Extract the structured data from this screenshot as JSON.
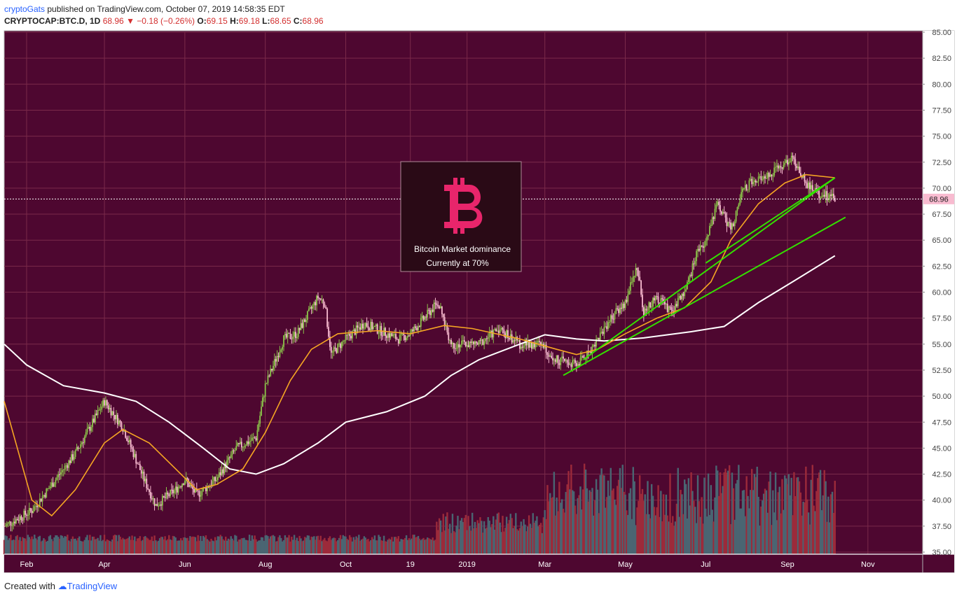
{
  "header": {
    "author": "cryptoGats",
    "published": "published on TradingView.com, October 07, 2019 14:58:35 EDT"
  },
  "ohlc": {
    "symbol": "CRYPTOCAP:BTC.D, 1D",
    "last": "68.96",
    "arrow": "▼",
    "change": "−0.18 (−0.26%)",
    "o_label": "O:",
    "o": "69.15",
    "h_label": "H:",
    "h": "69.18",
    "l_label": "L:",
    "l": "68.65",
    "c_label": "C:",
    "c": "68.96"
  },
  "footer": {
    "created": "Created with",
    "brand": "TradingView"
  },
  "badge": {
    "line1": "Bitcoin Market dominance",
    "line2": "Currently at 70%",
    "logo_color": "#e8256b"
  },
  "colors": {
    "background": "#4e0730",
    "grid": "#7a2a4a",
    "up": "#8bc34a",
    "down": "#f8bbd0",
    "ma_short": "#f5a623",
    "ma_long": "#ffffff",
    "trend": "#33e000",
    "vol_up": "#4a6572",
    "vol_down": "#9c2a3a"
  },
  "chart_data": {
    "type": "candlestick",
    "title": "",
    "xlabel": "",
    "ylabel": "",
    "ylim": [
      35.0,
      85.0
    ],
    "y_ticks": [
      "85.00",
      "82.50",
      "80.00",
      "77.50",
      "75.00",
      "72.50",
      "70.00",
      "67.50",
      "65.00",
      "62.50",
      "60.00",
      "57.50",
      "55.00",
      "52.50",
      "50.00",
      "47.50",
      "45.00",
      "42.50",
      "40.00",
      "37.50",
      "35.00"
    ],
    "x_ticks": [
      "Feb",
      "Apr",
      "Jun",
      "Aug",
      "Oct",
      "19",
      "2019",
      "Mar",
      "May",
      "Jul",
      "Sep",
      "Nov"
    ],
    "x_tick_dates": [
      "2018-02-01",
      "2018-04-01",
      "2018-06-01",
      "2018-08-01",
      "2018-10-01",
      "2018-11-19",
      "2019-01-01",
      "2019-03-01",
      "2019-05-01",
      "2019-07-01",
      "2019-09-01",
      "2019-11-01"
    ],
    "x_range": [
      "2018-01-15",
      "2019-12-12"
    ],
    "last_price_label": "68.96",
    "last_price": 68.96,
    "close_anchors": [
      [
        "2018-01-15",
        37.5
      ],
      [
        "2018-02-05",
        39.0
      ],
      [
        "2018-02-20",
        41.5
      ],
      [
        "2018-03-10",
        44.5
      ],
      [
        "2018-04-01",
        49.5
      ],
      [
        "2018-04-15",
        47.0
      ],
      [
        "2018-05-01",
        42.0
      ],
      [
        "2018-05-10",
        39.5
      ],
      [
        "2018-05-25",
        41.0
      ],
      [
        "2018-06-01",
        42.0
      ],
      [
        "2018-06-10",
        40.5
      ],
      [
        "2018-06-25",
        42.0
      ],
      [
        "2018-07-10",
        45.0
      ],
      [
        "2018-07-25",
        46.0
      ],
      [
        "2018-08-01",
        51.0
      ],
      [
        "2018-08-15",
        55.5
      ],
      [
        "2018-08-25",
        56.0
      ],
      [
        "2018-09-10",
        59.5
      ],
      [
        "2018-09-15",
        59.0
      ],
      [
        "2018-09-20",
        54.0
      ],
      [
        "2018-10-01",
        55.5
      ],
      [
        "2018-10-15",
        57.0
      ],
      [
        "2018-11-10",
        55.5
      ],
      [
        "2018-11-19",
        56.0
      ],
      [
        "2018-12-10",
        59.0
      ],
      [
        "2018-12-20",
        55.0
      ],
      [
        "2019-01-10",
        55.0
      ],
      [
        "2019-01-25",
        56.5
      ],
      [
        "2019-02-10",
        55.0
      ],
      [
        "2019-02-25",
        55.0
      ],
      [
        "2019-03-10",
        53.5
      ],
      [
        "2019-03-25",
        53.0
      ],
      [
        "2019-04-05",
        54.5
      ],
      [
        "2019-04-20",
        57.5
      ],
      [
        "2019-05-01",
        59.0
      ],
      [
        "2019-05-10",
        62.5
      ],
      [
        "2019-05-15",
        58.0
      ],
      [
        "2019-05-25",
        59.5
      ],
      [
        "2019-06-05",
        58.0
      ],
      [
        "2019-06-15",
        60.0
      ],
      [
        "2019-06-25",
        64.0
      ],
      [
        "2019-07-01",
        65.0
      ],
      [
        "2019-07-10",
        68.5
      ],
      [
        "2019-07-20",
        66.0
      ],
      [
        "2019-07-30",
        70.0
      ],
      [
        "2019-08-10",
        71.0
      ],
      [
        "2019-08-20",
        71.5
      ],
      [
        "2019-09-05",
        73.0
      ],
      [
        "2019-09-15",
        70.5
      ],
      [
        "2019-09-25",
        69.5
      ],
      [
        "2019-10-07",
        68.96
      ]
    ],
    "ma_short": [
      [
        "2018-01-15",
        49.5
      ],
      [
        "2018-02-05",
        40.0
      ],
      [
        "2018-02-20",
        38.5
      ],
      [
        "2018-03-10",
        41.0
      ],
      [
        "2018-04-01",
        45.5
      ],
      [
        "2018-04-15",
        46.8
      ],
      [
        "2018-05-05",
        45.5
      ],
      [
        "2018-05-25",
        43.0
      ],
      [
        "2018-06-10",
        41.0
      ],
      [
        "2018-06-25",
        41.5
      ],
      [
        "2018-07-15",
        43.0
      ],
      [
        "2018-08-01",
        46.5
      ],
      [
        "2018-08-20",
        51.5
      ],
      [
        "2018-09-05",
        54.5
      ],
      [
        "2018-09-25",
        56.0
      ],
      [
        "2018-10-25",
        56.3
      ],
      [
        "2018-11-19",
        56.0
      ],
      [
        "2018-12-15",
        56.8
      ],
      [
        "2019-01-05",
        56.5
      ],
      [
        "2019-02-10",
        55.5
      ],
      [
        "2019-03-10",
        54.5
      ],
      [
        "2019-03-25",
        54.0
      ],
      [
        "2019-04-10",
        54.5
      ],
      [
        "2019-05-01",
        56.0
      ],
      [
        "2019-05-25",
        57.5
      ],
      [
        "2019-06-15",
        58.5
      ],
      [
        "2019-07-05",
        61.0
      ],
      [
        "2019-07-20",
        65.0
      ],
      [
        "2019-08-10",
        68.5
      ],
      [
        "2019-08-30",
        70.5
      ],
      [
        "2019-09-15",
        71.3
      ],
      [
        "2019-10-07",
        71.0
      ]
    ],
    "ma_long": [
      [
        "2018-01-15",
        55.0
      ],
      [
        "2018-02-01",
        53.0
      ],
      [
        "2018-03-01",
        51.0
      ],
      [
        "2018-04-01",
        50.3
      ],
      [
        "2018-04-25",
        49.5
      ],
      [
        "2018-05-20",
        47.5
      ],
      [
        "2018-06-15",
        45.0
      ],
      [
        "2018-07-05",
        43.0
      ],
      [
        "2018-07-25",
        42.5
      ],
      [
        "2018-08-15",
        43.5
      ],
      [
        "2018-09-10",
        45.5
      ],
      [
        "2018-10-01",
        47.5
      ],
      [
        "2018-11-01",
        48.5
      ],
      [
        "2018-11-30",
        50.0
      ],
      [
        "2018-12-20",
        52.0
      ],
      [
        "2019-01-10",
        53.5
      ],
      [
        "2019-02-10",
        55.0
      ],
      [
        "2019-03-01",
        55.9
      ],
      [
        "2019-03-25",
        55.5
      ],
      [
        "2019-04-15",
        55.3
      ],
      [
        "2019-05-15",
        55.6
      ],
      [
        "2019-06-20",
        56.2
      ],
      [
        "2019-07-15",
        56.7
      ],
      [
        "2019-08-10",
        59.0
      ],
      [
        "2019-09-05",
        61.0
      ],
      [
        "2019-10-07",
        63.5
      ]
    ],
    "trendlines": [
      {
        "from": [
          "2019-03-15",
          52.0
        ],
        "to": [
          "2019-10-15",
          67.2
        ]
      },
      {
        "from": [
          "2019-03-30",
          53.5
        ],
        "to": [
          "2019-10-07",
          71.0
        ]
      },
      {
        "from": [
          "2019-07-01",
          62.8
        ],
        "to": [
          "2019-10-07",
          71.0
        ]
      }
    ],
    "volume_note": "volume histogram, relative scale"
  }
}
